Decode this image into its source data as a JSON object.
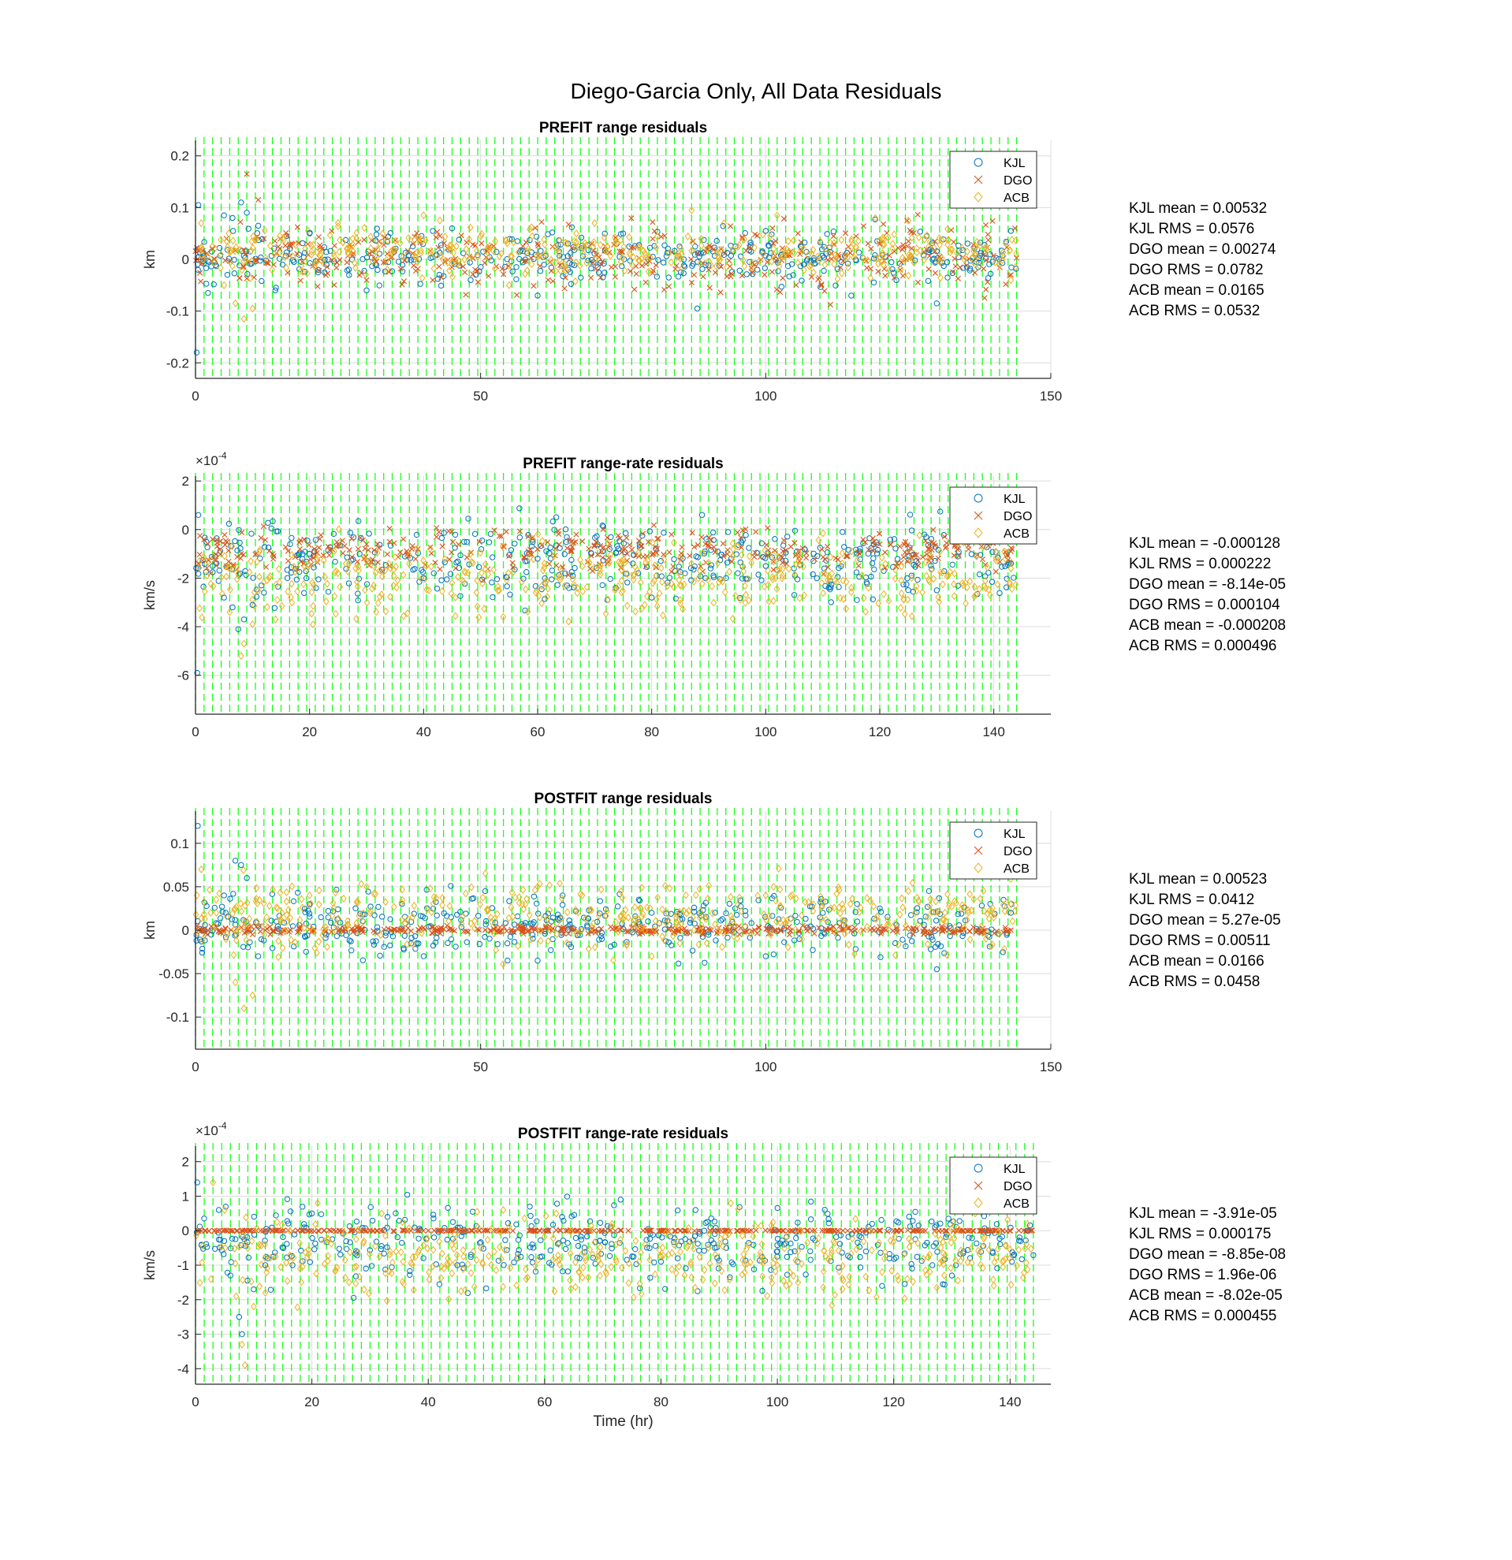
{
  "figure_title": "Diego-Garcia Only, All Data Residuals",
  "legend": [
    "KJL",
    "DGO",
    "ACB"
  ],
  "colors": {
    "KJL": "#0072BD",
    "DGO": "#D95319",
    "ACB": "#EDB120",
    "pass_lines": "#00FF00",
    "grid": "#dcdcdc",
    "axis": "#262626"
  },
  "chart_data": [
    {
      "type": "scatter",
      "title": "PREFIT range residuals",
      "ylabel": "km",
      "xlabel": "",
      "xlim": [
        0,
        150
      ],
      "ylim": [
        -0.23,
        0.23
      ],
      "xticks": [
        0,
        50,
        100,
        150
      ],
      "yticks": [
        -0.2,
        -0.1,
        0,
        0.1,
        0.2
      ],
      "ytick_labels": [
        "-0.2",
        "-0.1",
        "0",
        "0.1",
        "0.2"
      ],
      "exponent": "",
      "grid": true,
      "legend_location": "top-right",
      "pass_lines_x_range": [
        0,
        144
      ],
      "pass_spacing_hr": 1.5,
      "series": [
        {
          "name": "KJL",
          "marker": "circle",
          "mean": 0.00532,
          "rms": 0.0576,
          "points": [
            [
              0.2,
              -0.18
            ],
            [
              0.5,
              0.105
            ],
            [
              2.2,
              -0.065
            ],
            [
              5,
              0.085
            ],
            [
              6.5,
              0.08
            ],
            [
              8,
              0.11
            ],
            [
              9,
              0.09
            ],
            [
              11,
              0.065
            ],
            [
              14,
              -0.06
            ],
            [
              20,
              0.05
            ],
            [
              30,
              -0.06
            ],
            [
              45,
              0.06
            ],
            [
              60,
              -0.07
            ],
            [
              75,
              0.05
            ],
            [
              88,
              -0.095
            ],
            [
              100,
              0.055
            ],
            [
              115,
              -0.07
            ],
            [
              130,
              -0.085
            ],
            [
              143,
              0.055
            ]
          ]
        },
        {
          "name": "DGO",
          "marker": "x",
          "mean": 0.00274,
          "rms": 0.0782,
          "points": [
            [
              0.3,
              0.0
            ],
            [
              3,
              0.02
            ],
            [
              9,
              0.165
            ],
            [
              11,
              0.115
            ],
            [
              12,
              0.04
            ],
            [
              30,
              -0.04
            ],
            [
              60,
              0.03
            ],
            [
              90,
              -0.02
            ],
            [
              120,
              0.03
            ],
            [
              143,
              -0.03
            ]
          ]
        },
        {
          "name": "ACB",
          "marker": "diamond",
          "mean": 0.0165,
          "rms": 0.0532,
          "points": [
            [
              1,
              0.07
            ],
            [
              5,
              -0.05
            ],
            [
              7,
              -0.085
            ],
            [
              8.5,
              -0.115
            ],
            [
              10,
              -0.095
            ],
            [
              25,
              0.07
            ],
            [
              40,
              0.085
            ],
            [
              55,
              -0.05
            ],
            [
              70,
              0.07
            ],
            [
              87,
              0.095
            ],
            [
              102,
              0.085
            ],
            [
              125,
              0.075
            ],
            [
              143,
              -0.04
            ]
          ]
        }
      ]
    },
    {
      "type": "scatter",
      "title": "PREFIT range-rate residuals",
      "ylabel": "km/s",
      "xlabel": "",
      "xlim": [
        0,
        150
      ],
      "ylim": [
        -7.6,
        2.2
      ],
      "xticks": [
        0,
        20,
        40,
        60,
        80,
        100,
        120,
        140
      ],
      "yticks": [
        -6,
        -4,
        -2,
        0,
        2
      ],
      "ytick_labels": [
        "-6",
        "-4",
        "-2",
        "0",
        "2"
      ],
      "exponent": "-4",
      "grid": true,
      "legend_location": "top-right",
      "pass_lines_x_range": [
        0,
        144
      ],
      "pass_spacing_hr": 1.5,
      "series": [
        {
          "name": "KJL",
          "marker": "circle",
          "mean": -0.000128,
          "rms": 0.000222,
          "points": [
            [
              0.3,
              -5.9
            ],
            [
              0.5,
              0.6
            ],
            [
              3,
              -1.5
            ],
            [
              5,
              -2.8
            ],
            [
              6.5,
              -3.2
            ],
            [
              7.5,
              -4.1
            ],
            [
              8.5,
              -3.7
            ],
            [
              10,
              -3.1
            ],
            [
              12,
              -2.6
            ],
            [
              20,
              -1.0
            ],
            [
              40,
              -2.0
            ],
            [
              60,
              -1.2
            ],
            [
              80,
              -2.8
            ],
            [
              100,
              -1.5
            ],
            [
              116,
              -2.9
            ],
            [
              130,
              -2.5
            ],
            [
              143,
              -1.4
            ]
          ]
        },
        {
          "name": "DGO",
          "marker": "x",
          "mean": -8.14e-05,
          "rms": 0.000104,
          "points": [
            [
              0.5,
              -1.4
            ],
            [
              3,
              -0.4
            ],
            [
              8,
              -1.0
            ],
            [
              30,
              -0.6
            ],
            [
              60,
              -0.8
            ],
            [
              90,
              -0.7
            ],
            [
              120,
              -0.6
            ],
            [
              143,
              -0.9
            ]
          ]
        },
        {
          "name": "ACB",
          "marker": "diamond",
          "mean": -0.000208,
          "rms": 0.000496,
          "points": [
            [
              2,
              -1.9
            ],
            [
              6,
              -3.4
            ],
            [
              8,
              -5.2
            ],
            [
              8.5,
              -4.7
            ],
            [
              10,
              -3.9
            ],
            [
              25,
              -1.8
            ],
            [
              45,
              -2.2
            ],
            [
              67,
              -2.4
            ],
            [
              85,
              -2.9
            ],
            [
              115,
              -2.4
            ],
            [
              135,
              -2.2
            ],
            [
              143,
              -1.6
            ]
          ]
        }
      ]
    },
    {
      "type": "scatter",
      "title": "POSTFIT range residuals",
      "ylabel": "km",
      "xlabel": "",
      "xlim": [
        0,
        150
      ],
      "ylim": [
        -0.137,
        0.137
      ],
      "xticks": [
        0,
        50,
        100,
        150
      ],
      "yticks": [
        -0.1,
        -0.05,
        0,
        0.05,
        0.1
      ],
      "ytick_labels": [
        "-0.1",
        "-0.05",
        "0",
        "0.05",
        "0.1"
      ],
      "exponent": "",
      "grid": true,
      "legend_location": "top-right",
      "pass_lines_x_range": [
        0,
        144
      ],
      "pass_spacing_hr": 1.5,
      "series": [
        {
          "name": "KJL",
          "marker": "circle",
          "mean": 0.00523,
          "rms": 0.0412,
          "points": [
            [
              0.4,
              0.12
            ],
            [
              5,
              0.04
            ],
            [
              7,
              0.08
            ],
            [
              8,
              0.075
            ],
            [
              9,
              0.06
            ],
            [
              11,
              -0.03
            ],
            [
              20,
              0.03
            ],
            [
              40,
              -0.03
            ],
            [
              60,
              -0.035
            ],
            [
              80,
              0.02
            ],
            [
              100,
              -0.03
            ],
            [
              120,
              0.025
            ],
            [
              130,
              -0.045
            ],
            [
              143,
              0.02
            ]
          ]
        },
        {
          "name": "DGO",
          "marker": "x",
          "mean": 5.27e-05,
          "rms": 0.00511,
          "points": [
            [
              0.3,
              0.005
            ],
            [
              10,
              -0.005
            ],
            [
              40,
              0.003
            ],
            [
              80,
              -0.004
            ],
            [
              120,
              0.004
            ],
            [
              143,
              0.0
            ]
          ]
        },
        {
          "name": "ACB",
          "marker": "diamond",
          "mean": 0.0166,
          "rms": 0.0458,
          "points": [
            [
              1,
              0.07
            ],
            [
              7,
              -0.06
            ],
            [
              8.5,
              -0.09
            ],
            [
              10,
              -0.075
            ],
            [
              20,
              0.04
            ],
            [
              30,
              0.05
            ],
            [
              60,
              0.05
            ],
            [
              80,
              -0.03
            ],
            [
              100,
              0.04
            ],
            [
              125,
              0.045
            ],
            [
              143,
              0.03
            ]
          ]
        }
      ]
    },
    {
      "type": "scatter",
      "title": "POSTFIT range-rate residuals",
      "ylabel": "km/s",
      "xlabel": "Time (hr)",
      "xlim": [
        0,
        147
      ],
      "ylim": [
        -4.45,
        2.45
      ],
      "xticks": [
        0,
        20,
        40,
        60,
        80,
        100,
        120,
        140
      ],
      "yticks": [
        -4,
        -3,
        -2,
        -1,
        0,
        1,
        2
      ],
      "ytick_labels": [
        "-4",
        "-3",
        "-2",
        "-1",
        "0",
        "1",
        "2"
      ],
      "exponent": "-4",
      "grid": true,
      "legend_location": "top-right",
      "pass_lines_x_range": [
        0,
        144
      ],
      "pass_spacing_hr": 1.5,
      "series": [
        {
          "name": "KJL",
          "marker": "circle",
          "mean": -3.91e-05,
          "rms": 0.000175,
          "points": [
            [
              0.3,
              1.4
            ],
            [
              4,
              0.6
            ],
            [
              6,
              -1.3
            ],
            [
              7.5,
              -2.5
            ],
            [
              8,
              -3.0
            ],
            [
              10,
              -1.7
            ],
            [
              12,
              -1.0
            ],
            [
              20,
              0.5
            ],
            [
              33,
              0.4
            ],
            [
              45,
              -1.0
            ],
            [
              63,
              0.4
            ],
            [
              80,
              -0.9
            ],
            [
              100,
              -0.6
            ],
            [
              118,
              -1.6
            ],
            [
              130,
              -1.3
            ],
            [
              143,
              0.0
            ]
          ]
        },
        {
          "name": "DGO",
          "marker": "x",
          "mean": -8.85e-08,
          "rms": 1.96e-06,
          "points": [
            [
              0.3,
              0.0
            ],
            [
              10,
              0.0
            ],
            [
              40,
              0.0
            ],
            [
              80,
              0.0
            ],
            [
              120,
              0.0
            ],
            [
              143,
              0.0
            ]
          ]
        },
        {
          "name": "ACB",
          "marker": "diamond",
          "mean": -8.02e-05,
          "rms": 0.000455,
          "points": [
            [
              3,
              1.4
            ],
            [
              5,
              0.6
            ],
            [
              7,
              -1.9
            ],
            [
              8,
              -3.3
            ],
            [
              8.5,
              -3.9
            ],
            [
              10,
              -2.2
            ],
            [
              12,
              -1.8
            ],
            [
              21,
              0.8
            ],
            [
              32,
              0.5
            ],
            [
              62,
              0.5
            ],
            [
              92,
              0.8
            ],
            [
              100,
              -1.0
            ],
            [
              118,
              -1.2
            ],
            [
              134,
              0.5
            ],
            [
              143,
              0.2
            ]
          ]
        }
      ]
    }
  ],
  "stats_text": [
    [
      "KJL mean = 0.00532",
      "KJL RMS = 0.0576",
      "DGO mean = 0.00274",
      "DGO RMS = 0.0782",
      "ACB mean = 0.0165",
      "ACB RMS = 0.0532"
    ],
    [
      "KJL mean = -0.000128",
      "KJL RMS = 0.000222",
      "DGO mean = -8.14e-05",
      "DGO RMS = 0.000104",
      "ACB mean = -0.000208",
      "ACB RMS = 0.000496"
    ],
    [
      "KJL mean = 0.00523",
      "KJL RMS = 0.0412",
      "DGO mean = 5.27e-05",
      "DGO RMS = 0.00511",
      "ACB mean = 0.0166",
      "ACB RMS = 0.0458"
    ],
    [
      "KJL mean = -3.91e-05",
      "KJL RMS = 0.000175",
      "DGO mean = -8.85e-08",
      "DGO RMS = 1.96e-06",
      "ACB mean = -8.02e-05",
      "ACB RMS = 0.000455"
    ]
  ]
}
